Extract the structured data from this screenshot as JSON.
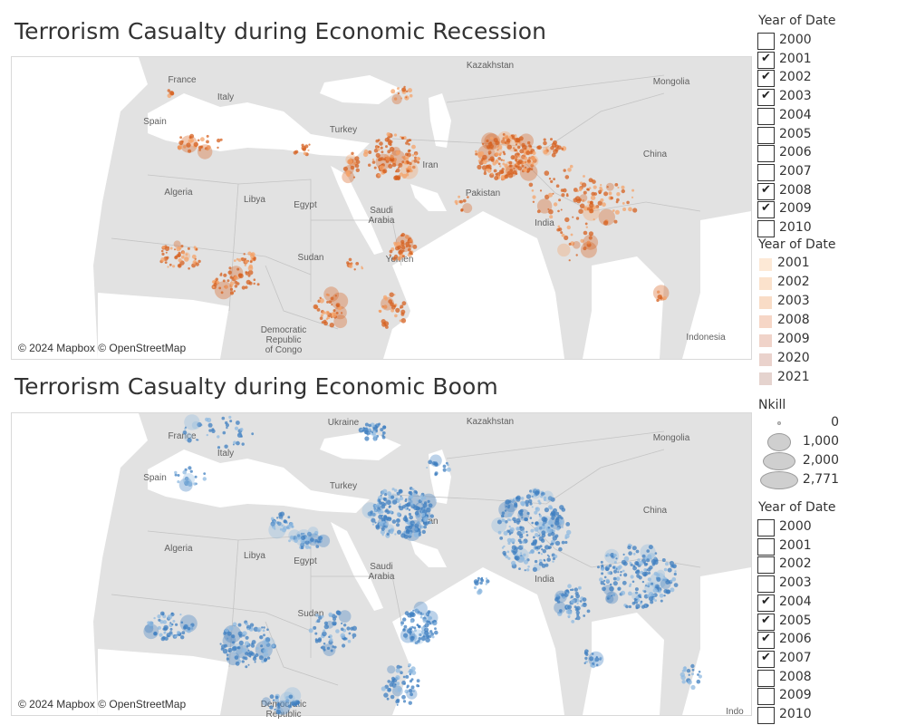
{
  "maps": [
    {
      "id": "recession",
      "title": "Terrorism Casualty during Economic Recession",
      "color": "#d6601f",
      "light_color": "#f4a36a",
      "attribution": "© 2024 Mapbox © OpenStreetMap",
      "labels": [
        "France",
        "Italy",
        "Spain",
        "Mongolia",
        "Turkey",
        "China",
        "Iran",
        "Algeria",
        "Libya",
        "Egypt",
        "Saudi Arabia",
        "Pakistan",
        "India",
        "Sudan",
        "Yemen",
        "Democratic Republic of Congo",
        "Indonesia",
        "Kazakhstan"
      ]
    },
    {
      "id": "boom",
      "title": "Terrorism Casualty during Economic Boom",
      "color": "#3f7fc0",
      "light_color": "#8fb9e0",
      "attribution": "© 2024 Mapbox © OpenStreetMap",
      "labels": [
        "France",
        "Italy",
        "Spain",
        "Ukraine",
        "Kazakhstan",
        "Mongolia",
        "Turkey",
        "Iran",
        "China",
        "Algeria",
        "Libya",
        "Egypt",
        "Saudi Arabia",
        "India",
        "Sudan",
        "Democratic Republic",
        "Indo"
      ]
    }
  ],
  "filter_top": {
    "title": "Year of Date",
    "items": [
      {
        "label": "2000",
        "checked": false
      },
      {
        "label": "2001",
        "checked": true
      },
      {
        "label": "2002",
        "checked": true
      },
      {
        "label": "2003",
        "checked": true
      },
      {
        "label": "2004",
        "checked": false
      },
      {
        "label": "2005",
        "checked": false
      },
      {
        "label": "2006",
        "checked": false
      },
      {
        "label": "2007",
        "checked": false
      },
      {
        "label": "2008",
        "checked": true
      },
      {
        "label": "2009",
        "checked": true
      },
      {
        "label": "2010",
        "checked": false
      }
    ]
  },
  "color_legend": {
    "title": "Year of Date",
    "items": [
      {
        "label": "2001",
        "color": "#fde9d6"
      },
      {
        "label": "2002",
        "color": "#fbe2cc"
      },
      {
        "label": "2003",
        "color": "#f9dcc6"
      },
      {
        "label": "2008",
        "color": "#f6d6c6"
      },
      {
        "label": "2009",
        "color": "#f0d3c9"
      },
      {
        "label": "2020",
        "color": "#ead2cc"
      },
      {
        "label": "2021",
        "color": "#e5d3ce"
      }
    ]
  },
  "size_legend": {
    "title": "Nkill",
    "items": [
      {
        "label": "0",
        "value": 0
      },
      {
        "label": "1,000",
        "value": 1000
      },
      {
        "label": "2,000",
        "value": 2000
      },
      {
        "label": "2,771",
        "value": 2771
      }
    ]
  },
  "filter_bottom": {
    "title": "Year of Date",
    "items": [
      {
        "label": "2000",
        "checked": false
      },
      {
        "label": "2001",
        "checked": false
      },
      {
        "label": "2002",
        "checked": false
      },
      {
        "label": "2003",
        "checked": false
      },
      {
        "label": "2004",
        "checked": true
      },
      {
        "label": "2005",
        "checked": true
      },
      {
        "label": "2006",
        "checked": true
      },
      {
        "label": "2007",
        "checked": true
      },
      {
        "label": "2008",
        "checked": false
      },
      {
        "label": "2009",
        "checked": false
      },
      {
        "label": "2010",
        "checked": false
      }
    ]
  },
  "icons": {
    "check": "check-icon"
  }
}
